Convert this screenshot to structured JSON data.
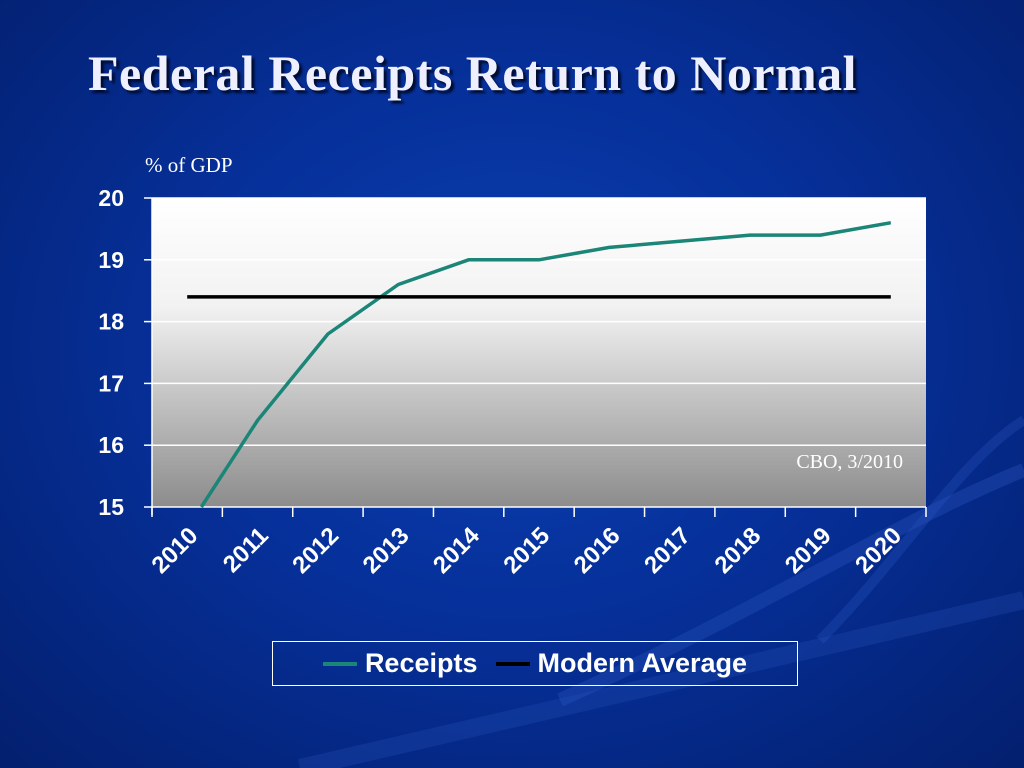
{
  "slide": {
    "title": "Federal Receipts Return to Normal"
  },
  "chart_data": {
    "type": "line",
    "title": "",
    "ylabel": "% of GDP",
    "xlabel": "",
    "x_categories": [
      "2010",
      "2011",
      "2012",
      "2013",
      "2014",
      "2015",
      "2016",
      "2017",
      "2018",
      "2019",
      "2020"
    ],
    "ylim": [
      15,
      20
    ],
    "y_ticks": [
      "15",
      "16",
      "17",
      "18",
      "19",
      "20"
    ],
    "grid": true,
    "series": [
      {
        "name": "Receipts",
        "color": "#1b8577",
        "x": [
          2010.7,
          2011.5,
          2012.5,
          2013.5,
          2014.5,
          2015.5,
          2016.5,
          2017.5,
          2018.5,
          2019.5,
          2020.5
        ],
        "values": [
          14.9,
          16.4,
          17.8,
          18.6,
          19.0,
          19.0,
          19.2,
          19.3,
          19.4,
          19.4,
          19.6
        ]
      },
      {
        "name": "Modern Average",
        "color": "#000000",
        "x": [
          2010.5,
          2020.5
        ],
        "values": [
          18.4,
          18.4
        ]
      }
    ],
    "annotation": "CBO, 3/2010",
    "legend_position": "bottom"
  }
}
